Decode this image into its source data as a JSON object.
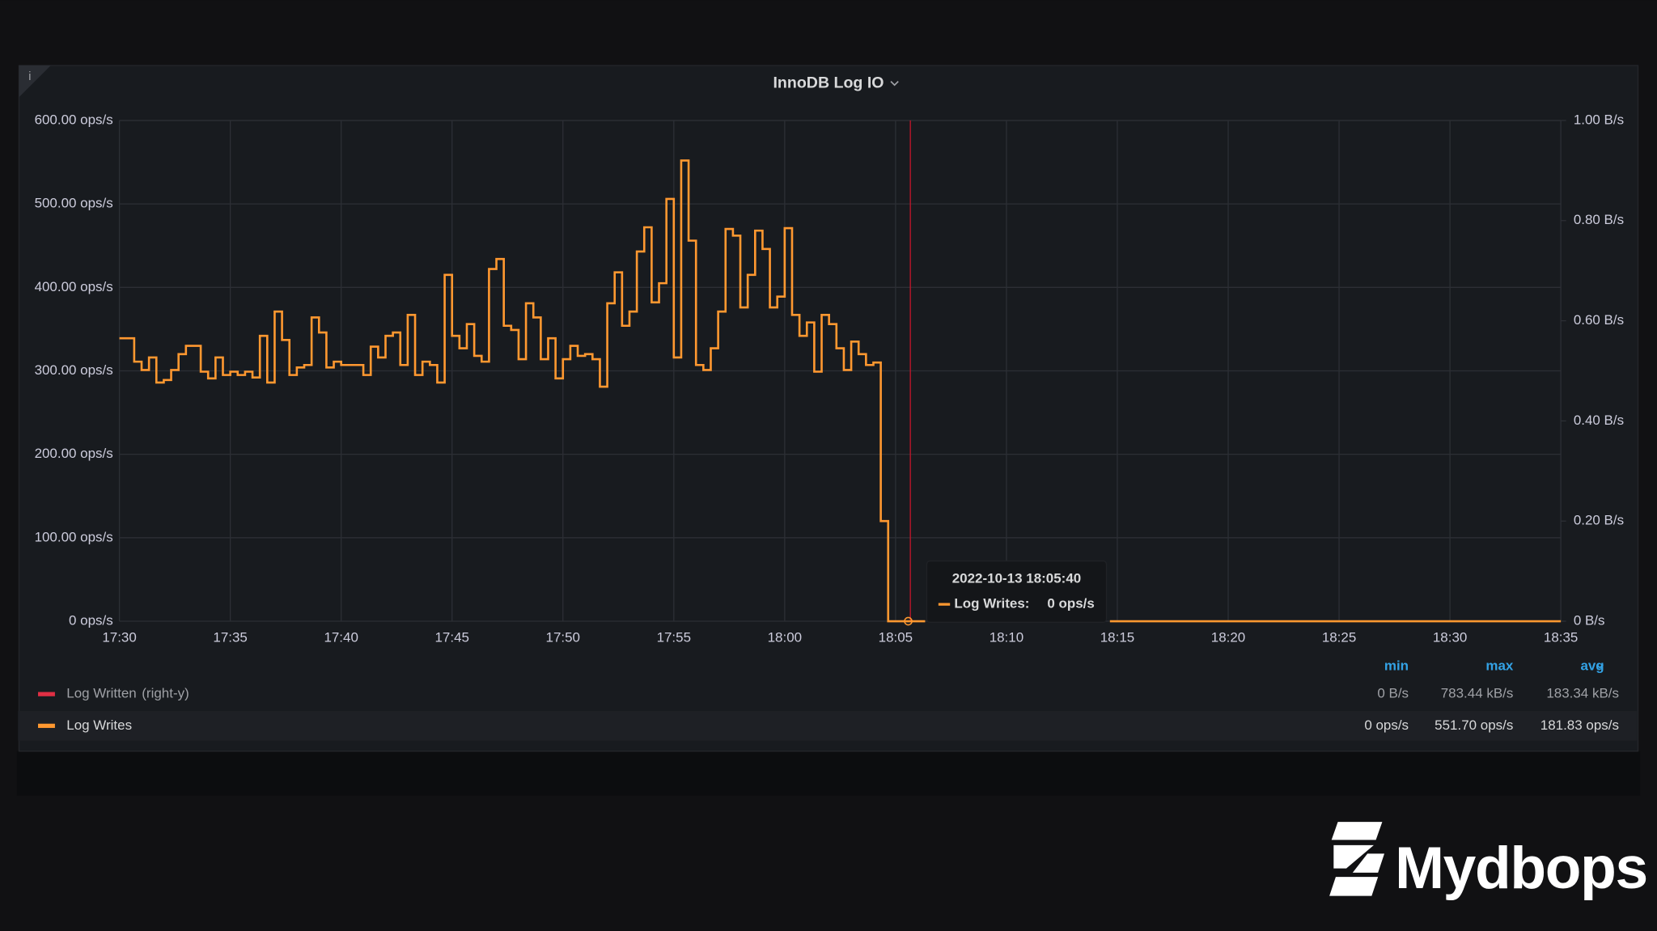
{
  "panel": {
    "title": "InnoDB Log IO",
    "info": "i"
  },
  "chart_data": {
    "type": "line",
    "step": true,
    "grid": true,
    "xlim": [
      "17:30",
      "18:35"
    ],
    "xticks": [
      "17:30",
      "17:35",
      "17:40",
      "17:45",
      "17:50",
      "17:55",
      "18:00",
      "18:05",
      "18:10",
      "18:15",
      "18:20",
      "18:25",
      "18:30",
      "18:35"
    ],
    "ylim": [
      0,
      600
    ],
    "yticks": [
      {
        "value": 0,
        "label": "0 ops/s"
      },
      {
        "value": 100,
        "label": "100.00 ops/s"
      },
      {
        "value": 200,
        "label": "200.00 ops/s"
      },
      {
        "value": 300,
        "label": "300.00 ops/s"
      },
      {
        "value": 400,
        "label": "400.00 ops/s"
      },
      {
        "value": 500,
        "label": "500.00 ops/s"
      },
      {
        "value": 600,
        "label": "600.00 ops/s"
      }
    ],
    "y2lim": [
      0,
      1
    ],
    "y2ticks": [
      {
        "value": 0,
        "label": "0 B/s"
      },
      {
        "value": 0.2,
        "label": "0.20 B/s"
      },
      {
        "value": 0.4,
        "label": "0.40 B/s"
      },
      {
        "value": 0.6,
        "label": "0.60 B/s"
      },
      {
        "value": 0.8,
        "label": "0.80 B/s"
      },
      {
        "value": 1,
        "label": "1.00 B/s"
      }
    ],
    "x": [
      "17:30:00",
      "17:30:20",
      "17:30:40",
      "17:31:00",
      "17:31:20",
      "17:31:40",
      "17:32:00",
      "17:32:20",
      "17:32:40",
      "17:33:00",
      "17:33:20",
      "17:33:40",
      "17:34:00",
      "17:34:20",
      "17:34:40",
      "17:35:00",
      "17:35:20",
      "17:35:40",
      "17:36:00",
      "17:36:20",
      "17:36:40",
      "17:37:00",
      "17:37:20",
      "17:37:40",
      "17:38:00",
      "17:38:20",
      "17:38:40",
      "17:39:00",
      "17:39:20",
      "17:39:40",
      "17:40:00",
      "17:40:20",
      "17:40:40",
      "17:41:00",
      "17:41:20",
      "17:41:40",
      "17:42:00",
      "17:42:20",
      "17:42:40",
      "17:43:00",
      "17:43:20",
      "17:43:40",
      "17:44:00",
      "17:44:20",
      "17:44:40",
      "17:45:00",
      "17:45:20",
      "17:45:40",
      "17:46:00",
      "17:46:20",
      "17:46:40",
      "17:47:00",
      "17:47:20",
      "17:47:40",
      "17:48:00",
      "17:48:20",
      "17:48:40",
      "17:49:00",
      "17:49:20",
      "17:49:40",
      "17:50:00",
      "17:50:20",
      "17:50:40",
      "17:51:00",
      "17:51:20",
      "17:51:40",
      "17:52:00",
      "17:52:20",
      "17:52:40",
      "17:53:00",
      "17:53:20",
      "17:53:40",
      "17:54:00",
      "17:54:20",
      "17:54:40",
      "17:55:00",
      "17:55:20",
      "17:55:40",
      "17:56:00",
      "17:56:20",
      "17:56:40",
      "17:57:00",
      "17:57:20",
      "17:57:40",
      "17:58:00",
      "17:58:20",
      "17:58:40",
      "17:59:00",
      "17:59:20",
      "17:59:40",
      "18:00:00",
      "18:00:20",
      "18:00:40",
      "18:01:00",
      "18:01:20",
      "18:01:40",
      "18:02:00",
      "18:02:20",
      "18:02:40",
      "18:03:00",
      "18:03:20",
      "18:03:40",
      "18:04:00",
      "18:04:20",
      "18:04:40",
      "18:05:00",
      "18:05:20",
      "18:05:40",
      "18:06:00",
      "18:06:20",
      "18:10:00",
      "18:14:40",
      "18:35:00"
    ],
    "series": [
      {
        "name": "Log Written",
        "axis_label": "(right-y)",
        "color": "#e02f44",
        "axis": "y2",
        "stats": [
          "0 B/s",
          "783.44 kB/s",
          "183.34 kB/s"
        ]
      },
      {
        "name": "Log Writes",
        "color": "#ff9830",
        "stats": [
          "0 ops/s",
          "551.70 ops/s",
          "181.83 ops/s"
        ],
        "values": [
          339,
          339,
          311,
          301,
          316,
          286,
          289,
          301,
          320,
          330,
          330,
          299,
          291,
          316,
          295,
          299,
          295,
          299,
          292,
          342,
          286,
          371,
          337,
          295,
          304,
          307,
          364,
          346,
          304,
          311,
          307,
          307,
          307,
          295,
          329,
          316,
          342,
          346,
          307,
          367,
          295,
          311,
          307,
          286,
          415,
          342,
          327,
          356,
          318,
          311,
          422,
          434,
          354,
          349,
          314,
          381,
          364,
          314,
          339,
          291,
          314,
          330,
          318,
          320,
          314,
          281,
          381,
          418,
          354,
          371,
          443,
          472,
          382,
          405,
          506,
          316,
          552,
          456,
          307,
          301,
          327,
          371,
          470,
          462,
          376,
          415,
          468,
          446,
          376,
          389,
          471,
          367,
          342,
          358,
          299,
          367,
          356,
          327,
          301,
          335,
          320,
          307,
          310,
          120,
          0,
          0,
          0,
          0,
          0,
          0,
          null,
          0,
          0
        ]
      }
    ],
    "legend_columns": [
      "min",
      "max",
      "avg"
    ],
    "tooltip": {
      "time": "2022-10-13 18:05:40",
      "label": "Log Writes:",
      "value": "0 ops/s"
    }
  },
  "branding": {
    "logo_text": "Mydbops"
  }
}
